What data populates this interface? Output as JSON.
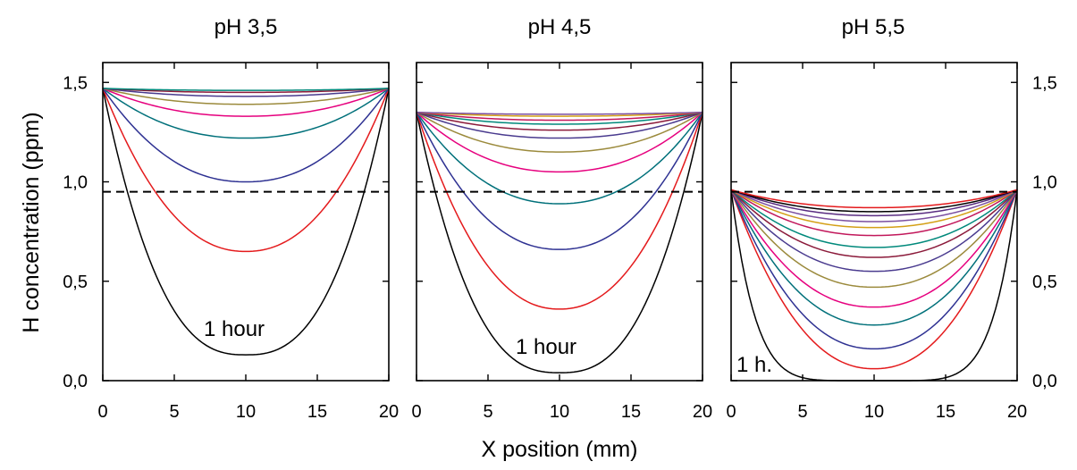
{
  "chart_data": {
    "type": "line",
    "xlabel": "X position (mm)",
    "ylabel": "H concentration (ppm)",
    "xlim": [
      0,
      20
    ],
    "ylim": [
      0,
      1.6
    ],
    "x_ticks": [
      0,
      5,
      10,
      15,
      20
    ],
    "x_tick_labels": [
      "0",
      "5",
      "10",
      "15",
      "20"
    ],
    "y_ticks": [
      0,
      0.5,
      1.0,
      1.5
    ],
    "y_tick_labels": [
      "0,0",
      "0,5",
      "1,0",
      "1,5"
    ],
    "threshold": 0.95,
    "threshold_style": "dashed",
    "grid": false,
    "palette": [
      "#000000",
      "#e41a1c",
      "#2e3192",
      "#00707a",
      "#e6007e",
      "#9b8a3c",
      "#4a3b8f",
      "#8b1a3a",
      "#00897b",
      "#c2185b",
      "#d4a017",
      "#7b4fa0",
      "#5a2d82"
    ],
    "panels": [
      {
        "title": "pH 3,5",
        "y_axis_side": "left",
        "annotation": "1 hour",
        "surface": 1.47,
        "series": [
          {
            "center": 0.13
          },
          {
            "center": 0.65
          },
          {
            "center": 1.0
          },
          {
            "center": 1.22
          },
          {
            "center": 1.33
          },
          {
            "center": 1.39
          },
          {
            "center": 1.43
          },
          {
            "center": 1.45
          },
          {
            "center": 1.46
          }
        ]
      },
      {
        "title": "pH 4,5",
        "y_axis_side": "none",
        "annotation": "1 hour",
        "surface": 1.35,
        "series": [
          {
            "center": 0.04
          },
          {
            "center": 0.36
          },
          {
            "center": 0.66
          },
          {
            "center": 0.89
          },
          {
            "center": 1.05
          },
          {
            "center": 1.15
          },
          {
            "center": 1.22
          },
          {
            "center": 1.26
          },
          {
            "center": 1.29
          },
          {
            "center": 1.31
          },
          {
            "center": 1.33
          },
          {
            "center": 1.34
          }
        ]
      },
      {
        "title": "pH 5,5",
        "y_axis_side": "right",
        "annotation": "1 h.",
        "surface": 0.96,
        "series": [
          {
            "center": 0.0
          },
          {
            "center": 0.06
          },
          {
            "center": 0.16
          },
          {
            "center": 0.28
          },
          {
            "center": 0.37
          },
          {
            "center": 0.47
          },
          {
            "center": 0.55
          },
          {
            "center": 0.62
          },
          {
            "center": 0.67
          },
          {
            "center": 0.73
          },
          {
            "center": 0.77
          },
          {
            "center": 0.8
          },
          {
            "center": 0.83
          },
          {
            "center": 0.85
          },
          {
            "center": 0.87
          }
        ]
      }
    ]
  }
}
